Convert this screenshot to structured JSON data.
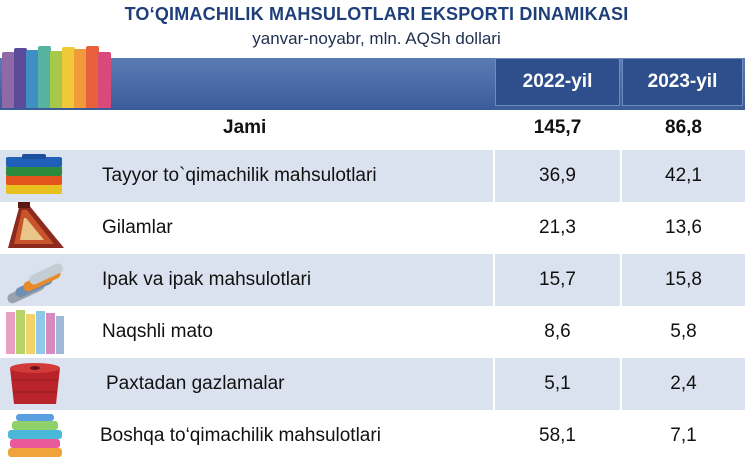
{
  "title": "TO‘QIMACHILIK MAHSULOTLARI EKSPORTI DINAMIKASI",
  "subtitle": "yanvar-noyabr, mln. AQSh dollari",
  "columns": [
    "2022-yil",
    "2023-yil"
  ],
  "total": {
    "label": "Jami",
    "v2022": "145,7",
    "v2023": "86,8"
  },
  "rows": [
    {
      "label": "Tayyor to`qimachilik mahsulotlari",
      "v2022": "36,9",
      "v2023": "42,1",
      "icon": "folded-clothes-icon"
    },
    {
      "label": "Gilamlar",
      "v2022": "21,3",
      "v2023": "13,6",
      "icon": "carpet-icon"
    },
    {
      "label": "Ipak va ipak mahsulotlari",
      "v2022": "15,7",
      "v2023": "15,8",
      "icon": "silk-rolls-icon"
    },
    {
      "label": "Naqshli mato",
      "v2022": "8,6",
      "v2023": "5,8",
      "icon": "patterned-fabric-icon"
    },
    {
      "label": "Paxtadan gazlamalar",
      "v2022": "5,1",
      "v2023": "2,4",
      "icon": "cotton-yarn-spool-icon"
    },
    {
      "label": "Boshqa to‘qimachilik mahsulotlari",
      "v2022": "58,1",
      "v2023": "7,1",
      "icon": "stacked-towels-icon"
    }
  ],
  "colors": {
    "title": "#1f3f7a",
    "header": "#2e4f8c",
    "shaded_row": "#dbe2ef"
  }
}
